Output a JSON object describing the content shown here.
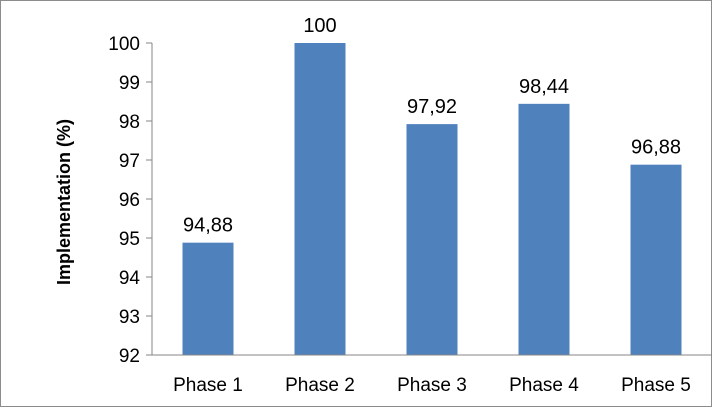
{
  "chart_data": {
    "type": "bar",
    "categories": [
      "Phase 1",
      "Phase 2",
      "Phase 3",
      "Phase 4",
      "Phase 5"
    ],
    "values": [
      94.88,
      100,
      97.92,
      98.44,
      96.88
    ],
    "data_labels": [
      "94,88",
      "100",
      "97,92",
      "98,44",
      "96,88"
    ],
    "title": "",
    "xlabel": "",
    "ylabel": "Implementation (%)",
    "ylim": [
      92,
      100
    ],
    "yticks": [
      "92",
      "93",
      "94",
      "95",
      "96",
      "97",
      "98",
      "99",
      "100"
    ],
    "grid": false,
    "legend": "none",
    "bar_color": "#4f81bd"
  }
}
